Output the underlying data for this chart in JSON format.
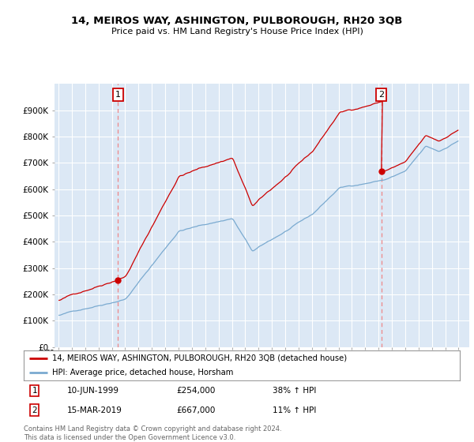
{
  "title": "14, MEIROS WAY, ASHINGTON, PULBOROUGH, RH20 3QB",
  "subtitle": "Price paid vs. HM Land Registry's House Price Index (HPI)",
  "legend_line1": "14, MEIROS WAY, ASHINGTON, PULBOROUGH, RH20 3QB (detached house)",
  "legend_line2": "HPI: Average price, detached house, Horsham",
  "marker1_label": "1",
  "marker1_date": "10-JUN-1999",
  "marker1_price": "£254,000",
  "marker1_hpi": "38% ↑ HPI",
  "marker1_year": 1999.45,
  "marker1_value": 254000,
  "marker2_label": "2",
  "marker2_date": "15-MAR-2019",
  "marker2_price": "£667,000",
  "marker2_hpi": "11% ↑ HPI",
  "marker2_year": 2019.21,
  "marker2_value": 667000,
  "footer": "Contains HM Land Registry data © Crown copyright and database right 2024.\nThis data is licensed under the Open Government Licence v3.0.",
  "red_color": "#cc0000",
  "blue_color": "#7aaad0",
  "plot_bg": "#dce8f5",
  "grid_color": "#ffffff",
  "ylim": [
    0,
    1000000
  ],
  "yticks": [
    0,
    100000,
    200000,
    300000,
    400000,
    500000,
    600000,
    700000,
    800000,
    900000
  ],
  "ytick_labels": [
    "£0",
    "£100K",
    "£200K",
    "£300K",
    "£400K",
    "£500K",
    "£600K",
    "£700K",
    "£800K",
    "£900K"
  ],
  "xlim_start": 1994.7,
  "xlim_end": 2025.8
}
